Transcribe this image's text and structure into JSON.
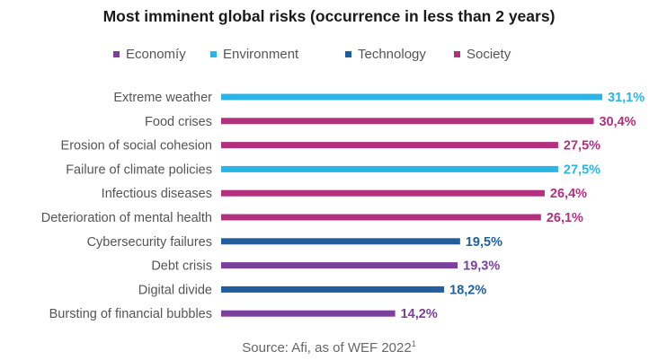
{
  "chart_data": {
    "type": "bar",
    "orientation": "horizontal",
    "title": "Most imminent global risks (occurrence in less than 2 years)",
    "source_label": "Source: Afi, as of WEF 2022",
    "source_sup": "1",
    "legend": [
      {
        "name": "Economy",
        "display": "Economíy",
        "color": "#7b3f9c"
      },
      {
        "name": "Environment",
        "display": "Environment",
        "color": "#29b6e6"
      },
      {
        "name": "Technology",
        "display": "Technology",
        "color": "#1f5fa0"
      },
      {
        "name": "Society",
        "display": "Society",
        "color": "#b3307f"
      }
    ],
    "categories": [
      "Extreme weather",
      "Food crises",
      "Erosion of social cohesion",
      "Failure of climate policies",
      "Infectious diseases",
      "Deterioration of mental health",
      "Cybersecurity failures",
      "Debt crisis",
      "Digital divide",
      "Bursting of financial bubbles"
    ],
    "values": [
      31.1,
      30.4,
      27.5,
      27.5,
      26.4,
      26.1,
      19.5,
      19.3,
      18.2,
      14.2
    ],
    "value_labels": [
      "31,1%",
      "30,4%",
      "27,5%",
      "27,5%",
      "26,4%",
      "26,1%",
      "19,5%",
      "19,3%",
      "18,2%",
      "14,2%"
    ],
    "groups": [
      "Environment",
      "Society",
      "Society",
      "Environment",
      "Society",
      "Society",
      "Technology",
      "Economy",
      "Technology",
      "Economy"
    ],
    "xlim": [
      0,
      31.1
    ],
    "grid": false
  }
}
